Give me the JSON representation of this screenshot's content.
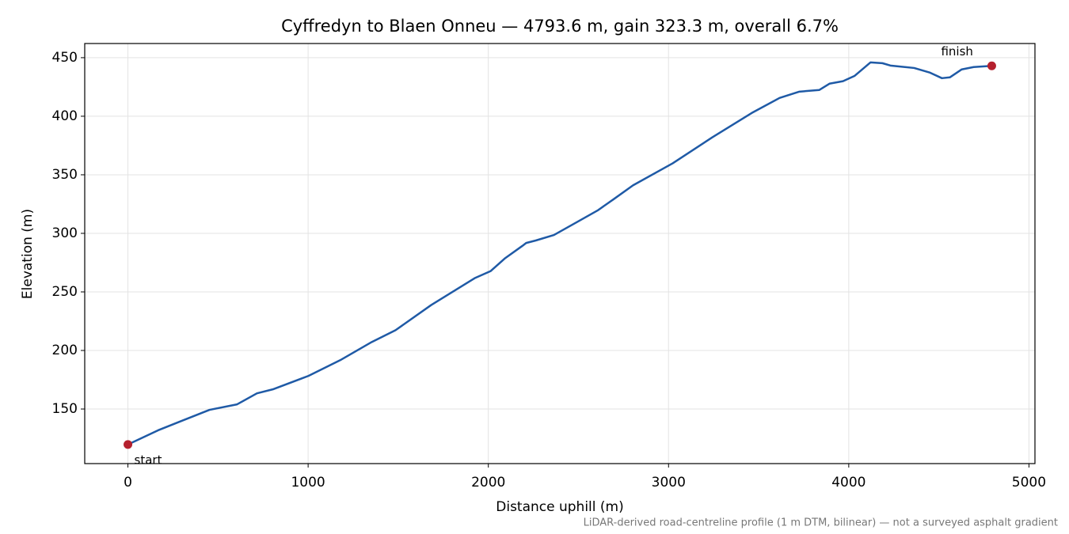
{
  "chart_data": {
    "type": "line",
    "title": "Cyffredyn to Blaen Onneu — 4793.6 m, gain 323.3 m, overall 6.7%",
    "x_label": "Distance uphill (m)",
    "y_label": "Elevation (m)",
    "footnote": "LiDAR-derived road-centreline profile (1 m DTM, bilinear) — not a surveyed asphalt gradient",
    "x": [
      0,
      167,
      299,
      453,
      606,
      716,
      804,
      1002,
      1178,
      1353,
      1485,
      1683,
      1924,
      2012,
      2091,
      2188,
      2210,
      2263,
      2364,
      2496,
      2606,
      2693,
      2803,
      3023,
      3243,
      3462,
      3616,
      3726,
      3836,
      3893,
      3968,
      4033,
      4121,
      4187,
      4231,
      4363,
      4451,
      4517,
      4561,
      4627,
      4693,
      4793.6
    ],
    "series": [
      {
        "name": "Elevation",
        "color": "#1f5aa6",
        "values": [
          119.7,
          131.8,
          139.9,
          149.3,
          154,
          163.4,
          166.8,
          178.3,
          191.7,
          207.2,
          217.3,
          238.8,
          261.7,
          267.7,
          278.5,
          289.2,
          291.8,
          293.9,
          298.6,
          310,
          319.5,
          328.9,
          341,
          359.8,
          382,
          402.8,
          415.6,
          421,
          422.4,
          427.8,
          429.9,
          434.5,
          446,
          445.3,
          443.3,
          441.2,
          437.2,
          432.5,
          433.2,
          440,
          442,
          443
        ]
      }
    ],
    "markers": [
      {
        "label": "start",
        "x": 0,
        "y": 119.7
      },
      {
        "label": "finish",
        "x": 4793.6,
        "y": 443
      }
    ],
    "marker_color": "#b5202e",
    "xlim": [
      -239.68,
      5033.28
    ],
    "ylim": [
      103.4,
      462.1
    ],
    "xticks": [
      0,
      1000,
      2000,
      3000,
      4000,
      5000
    ],
    "yticks": [
      150,
      200,
      250,
      300,
      350,
      400,
      450
    ],
    "grid": true
  }
}
